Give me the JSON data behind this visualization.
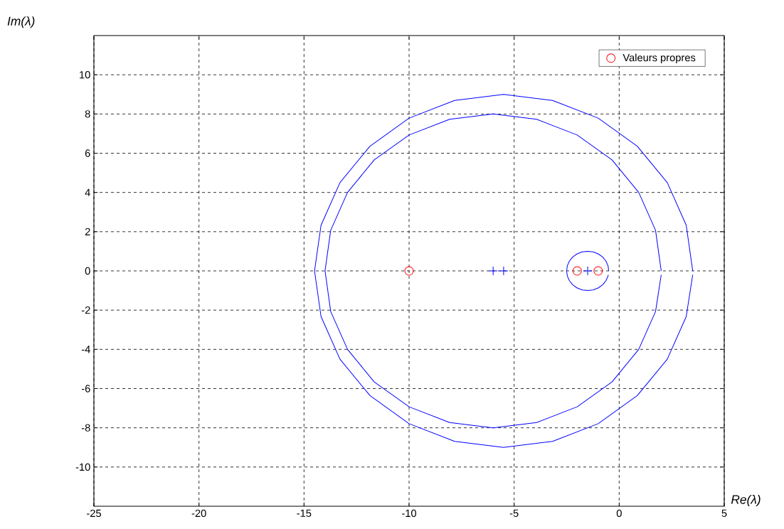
{
  "chart_data": {
    "type": "line",
    "xlabel": "Re(λ)",
    "ylabel": "Im(λ)",
    "xlim": [
      -25,
      5
    ],
    "ylim": [
      -12,
      12
    ],
    "xticks": [
      -25,
      -20,
      -15,
      -10,
      -5,
      0,
      5
    ],
    "yticks": [
      -10,
      -8,
      -6,
      -4,
      -2,
      0,
      2,
      4,
      6,
      8,
      10
    ],
    "grid": true,
    "legend": "top right",
    "series": [
      {
        "color": "#0000ff",
        "marker": "none",
        "line_style": "solid",
        "x": [
          3.5,
          3.19,
          2.29,
          0.86,
          -1,
          -3.17,
          -5.5,
          -7.83,
          -10,
          -11.86,
          -13.29,
          -14.19,
          -14.5,
          -14.19,
          -13.29,
          -11.86,
          -10,
          -7.83,
          -5.5,
          -3.17,
          -1,
          0.86,
          2.29,
          3.19,
          3.5
        ],
        "values": [
          0,
          2.33,
          4.5,
          6.36,
          7.79,
          8.69,
          9,
          8.69,
          7.79,
          6.36,
          4.5,
          2.33,
          0,
          -2.33,
          -4.5,
          -6.36,
          -7.79,
          -8.69,
          -9,
          -8.69,
          -7.79,
          -6.36,
          -4.5,
          -2.33,
          -0.2
        ]
      },
      {
        "color": "#0000ff",
        "marker": "none",
        "line_style": "solid",
        "x": [
          2,
          1.73,
          0.93,
          -0.34,
          -2,
          -3.93,
          -6,
          -8.07,
          -10,
          -11.66,
          -12.93,
          -13.73,
          -14,
          -13.73,
          -12.93,
          -11.66,
          -10,
          -8.07,
          -6,
          -3.93,
          -2,
          -0.34,
          0.93,
          1.73,
          2
        ],
        "values": [
          0,
          2.07,
          4,
          5.66,
          6.93,
          7.73,
          8,
          7.73,
          6.93,
          5.66,
          4,
          2.07,
          0,
          -2.07,
          -4,
          -5.66,
          -6.93,
          -7.73,
          -8,
          -7.73,
          -6.93,
          -5.66,
          -4,
          -2.07,
          -0.2
        ]
      },
      {
        "color": "#0000ff",
        "marker": "none",
        "line_style": "solid",
        "x": [
          -0.5,
          -0.53,
          -0.63,
          -0.79,
          -1,
          -1.24,
          -1.5,
          -1.76,
          -2,
          -2.21,
          -2.37,
          -2.47,
          -2.5,
          -2.47,
          -2.37,
          -2.21,
          -2,
          -1.76,
          -1.5,
          -1.24,
          -1,
          -0.79,
          -0.63,
          -0.53,
          -0.52
        ],
        "values": [
          0,
          0.26,
          0.5,
          0.71,
          0.87,
          0.97,
          1,
          0.97,
          0.87,
          0.71,
          0.5,
          0.26,
          0,
          -0.26,
          -0.5,
          -0.71,
          -0.87,
          -0.97,
          -1,
          -0.97,
          -0.87,
          -0.71,
          -0.5,
          -0.26,
          -0.2
        ]
      },
      {
        "type": "scatter",
        "color": "#0000ff",
        "marker": "cross",
        "x": [
          -6,
          -5.5,
          -1.5
        ],
        "values": [
          0,
          0,
          0
        ]
      },
      {
        "type": "scatter",
        "name": "Valeurs propres",
        "color": "#ff0000",
        "marker": "circle",
        "x": [
          -10,
          -2,
          -1
        ],
        "values": [
          0,
          0,
          0
        ]
      }
    ]
  }
}
